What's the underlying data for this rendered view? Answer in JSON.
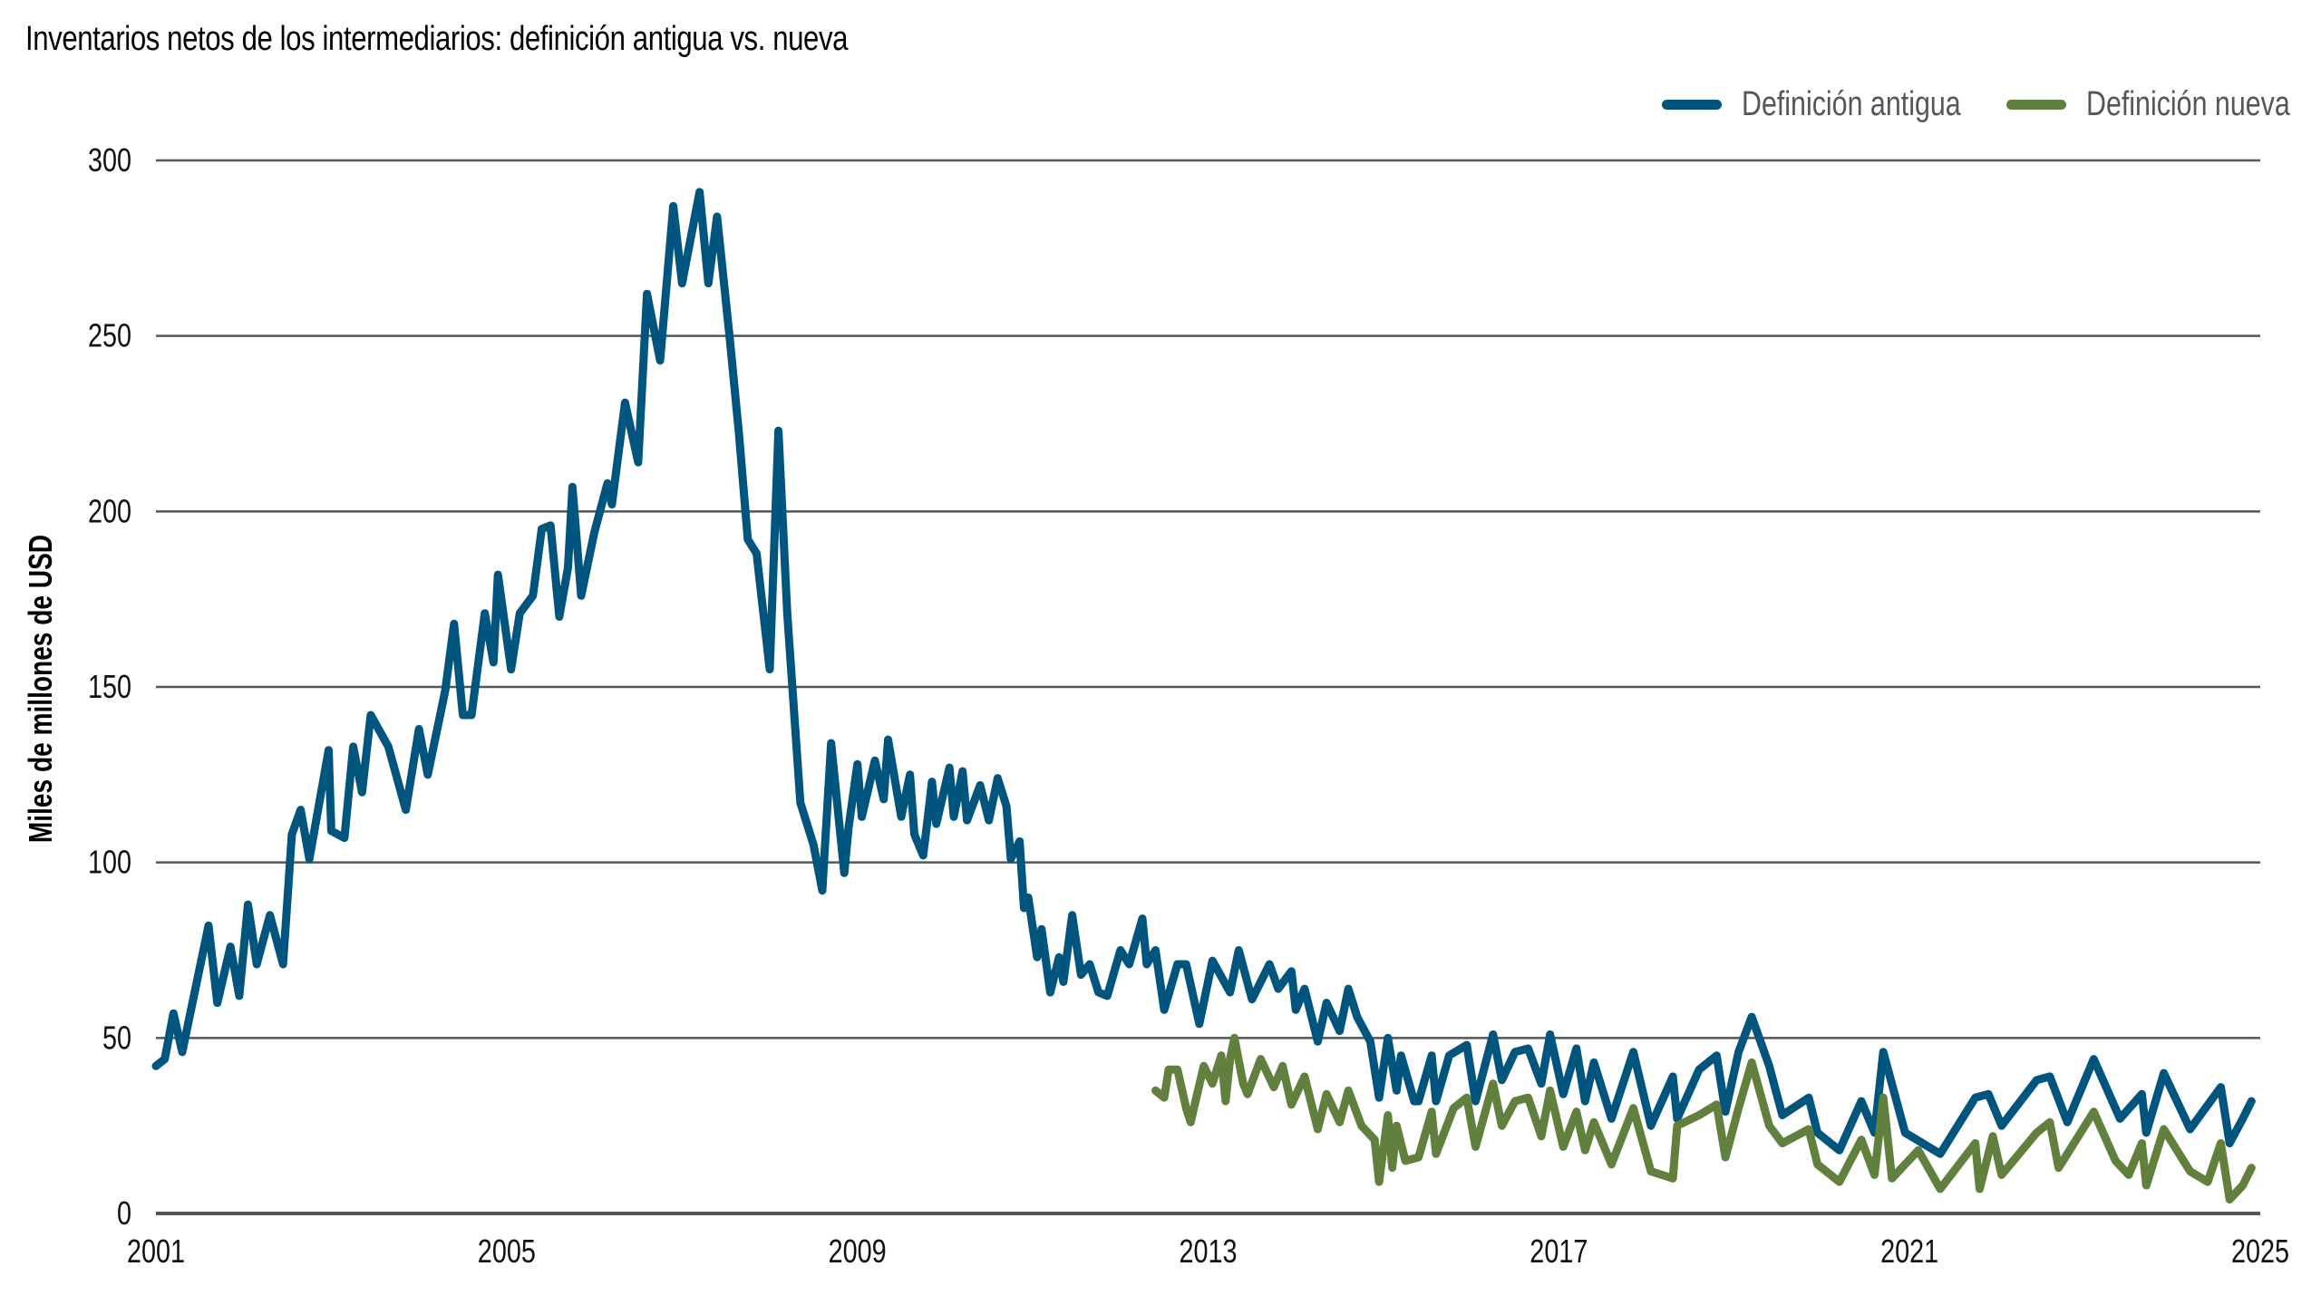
{
  "chart_data": {
    "type": "line",
    "title": "Inventarios netos de los intermediarios: definición antigua vs. nueva",
    "xlabel": "",
    "ylabel": "Miles de millones de USD",
    "xlim": [
      2001,
      2025
    ],
    "ylim": [
      0,
      300
    ],
    "x_ticks": [
      "2001",
      "2005",
      "2009",
      "2013",
      "2017",
      "2021",
      "2025"
    ],
    "y_ticks": [
      "0",
      "50",
      "100",
      "150",
      "200",
      "250",
      "300"
    ],
    "grid": "horizontal",
    "legend_position": "top-right",
    "series": [
      {
        "name": "Definición antigua",
        "color": "#00557f",
        "points": [
          [
            2001.0,
            42
          ],
          [
            2001.1,
            44
          ],
          [
            2001.2,
            57
          ],
          [
            2001.3,
            46
          ],
          [
            2001.45,
            64
          ],
          [
            2001.6,
            82
          ],
          [
            2001.7,
            60
          ],
          [
            2001.85,
            76
          ],
          [
            2001.95,
            62
          ],
          [
            2002.05,
            88
          ],
          [
            2002.15,
            71
          ],
          [
            2002.3,
            85
          ],
          [
            2002.45,
            71
          ],
          [
            2002.55,
            108
          ],
          [
            2002.65,
            115
          ],
          [
            2002.75,
            101
          ],
          [
            2002.97,
            132
          ],
          [
            2003.0,
            109
          ],
          [
            2003.15,
            107
          ],
          [
            2003.25,
            133
          ],
          [
            2003.35,
            120
          ],
          [
            2003.45,
            142
          ],
          [
            2003.65,
            133
          ],
          [
            2003.85,
            115
          ],
          [
            2004.0,
            138
          ],
          [
            2004.1,
            125
          ],
          [
            2004.3,
            149
          ],
          [
            2004.4,
            168
          ],
          [
            2004.5,
            142
          ],
          [
            2004.6,
            142
          ],
          [
            2004.75,
            171
          ],
          [
            2004.85,
            157
          ],
          [
            2004.9,
            182
          ],
          [
            2005.05,
            155
          ],
          [
            2005.15,
            171
          ],
          [
            2005.3,
            176
          ],
          [
            2005.4,
            195
          ],
          [
            2005.5,
            196
          ],
          [
            2005.6,
            170
          ],
          [
            2005.7,
            184
          ],
          [
            2005.75,
            207
          ],
          [
            2005.85,
            176
          ],
          [
            2006.0,
            194
          ],
          [
            2006.15,
            208
          ],
          [
            2006.2,
            202
          ],
          [
            2006.35,
            231
          ],
          [
            2006.5,
            214
          ],
          [
            2006.6,
            262
          ],
          [
            2006.75,
            243
          ],
          [
            2006.9,
            287
          ],
          [
            2007.0,
            265
          ],
          [
            2007.2,
            291
          ],
          [
            2007.3,
            265
          ],
          [
            2007.4,
            284
          ],
          [
            2007.55,
            248
          ],
          [
            2007.65,
            222
          ],
          [
            2007.75,
            192
          ],
          [
            2007.85,
            188
          ],
          [
            2008.0,
            155
          ],
          [
            2008.1,
            223
          ],
          [
            2008.2,
            171
          ],
          [
            2008.35,
            117
          ],
          [
            2008.5,
            105
          ],
          [
            2008.6,
            92
          ],
          [
            2008.7,
            134
          ],
          [
            2008.85,
            97
          ],
          [
            2008.9,
            110
          ],
          [
            2009.0,
            128
          ],
          [
            2009.05,
            113
          ],
          [
            2009.2,
            129
          ],
          [
            2009.3,
            118
          ],
          [
            2009.35,
            135
          ],
          [
            2009.5,
            113
          ],
          [
            2009.6,
            125
          ],
          [
            2009.65,
            108
          ],
          [
            2009.75,
            102
          ],
          [
            2009.8,
            112
          ],
          [
            2009.85,
            123
          ],
          [
            2009.9,
            111
          ],
          [
            2010.05,
            127
          ],
          [
            2010.1,
            113
          ],
          [
            2010.2,
            126
          ],
          [
            2010.25,
            112
          ],
          [
            2010.4,
            122
          ],
          [
            2010.5,
            112
          ],
          [
            2010.6,
            124
          ],
          [
            2010.7,
            116
          ],
          [
            2010.75,
            101
          ],
          [
            2010.85,
            106
          ],
          [
            2010.9,
            87
          ],
          [
            2010.95,
            90
          ],
          [
            2011.05,
            73
          ],
          [
            2011.1,
            81
          ],
          [
            2011.2,
            63
          ],
          [
            2011.3,
            73
          ],
          [
            2011.35,
            66
          ],
          [
            2011.45,
            85
          ],
          [
            2011.55,
            68
          ],
          [
            2011.65,
            71
          ],
          [
            2011.75,
            63
          ],
          [
            2011.85,
            62
          ],
          [
            2012.0,
            75
          ],
          [
            2012.1,
            71
          ],
          [
            2012.25,
            84
          ],
          [
            2012.3,
            71
          ],
          [
            2012.4,
            75
          ],
          [
            2012.5,
            58
          ],
          [
            2012.65,
            71
          ],
          [
            2012.75,
            71
          ],
          [
            2012.9,
            54
          ],
          [
            2013.05,
            72
          ],
          [
            2013.25,
            63
          ],
          [
            2013.35,
            75
          ],
          [
            2013.5,
            61
          ],
          [
            2013.7,
            71
          ],
          [
            2013.8,
            64
          ],
          [
            2013.95,
            69
          ],
          [
            2014.0,
            58
          ],
          [
            2014.1,
            64
          ],
          [
            2014.25,
            49
          ],
          [
            2014.35,
            60
          ],
          [
            2014.5,
            52
          ],
          [
            2014.6,
            64
          ],
          [
            2014.7,
            56
          ],
          [
            2014.85,
            49
          ],
          [
            2014.95,
            33
          ],
          [
            2015.05,
            50
          ],
          [
            2015.15,
            35
          ],
          [
            2015.2,
            45
          ],
          [
            2015.35,
            32
          ],
          [
            2015.4,
            32
          ],
          [
            2015.55,
            45
          ],
          [
            2015.6,
            32
          ],
          [
            2015.75,
            45
          ],
          [
            2015.95,
            48
          ],
          [
            2016.05,
            32
          ],
          [
            2016.25,
            51
          ],
          [
            2016.35,
            38
          ],
          [
            2016.5,
            46
          ],
          [
            2016.65,
            47
          ],
          [
            2016.8,
            37
          ],
          [
            2016.9,
            51
          ],
          [
            2017.05,
            34
          ],
          [
            2017.2,
            47
          ],
          [
            2017.3,
            32
          ],
          [
            2017.4,
            43
          ],
          [
            2017.6,
            27
          ],
          [
            2017.85,
            46
          ],
          [
            2018.05,
            25
          ],
          [
            2018.3,
            39
          ],
          [
            2018.35,
            27
          ],
          [
            2018.6,
            41
          ],
          [
            2018.8,
            45
          ],
          [
            2018.9,
            29
          ],
          [
            2019.05,
            46
          ],
          [
            2019.2,
            56
          ],
          [
            2019.4,
            42
          ],
          [
            2019.55,
            28
          ],
          [
            2019.85,
            33
          ],
          [
            2019.95,
            23
          ],
          [
            2020.2,
            18
          ],
          [
            2020.45,
            32
          ],
          [
            2020.6,
            23
          ],
          [
            2020.7,
            46
          ],
          [
            2020.95,
            23
          ],
          [
            2021.35,
            17
          ],
          [
            2021.75,
            33
          ],
          [
            2021.9,
            34
          ],
          [
            2022.05,
            25
          ],
          [
            2022.45,
            38
          ],
          [
            2022.6,
            39
          ],
          [
            2022.8,
            26
          ],
          [
            2023.1,
            44
          ],
          [
            2023.4,
            27
          ],
          [
            2023.65,
            34
          ],
          [
            2023.7,
            23
          ],
          [
            2023.9,
            40
          ],
          [
            2024.2,
            24
          ],
          [
            2024.55,
            36
          ],
          [
            2024.65,
            20
          ],
          [
            2024.8,
            27
          ],
          [
            2024.9,
            32
          ]
        ]
      },
      {
        "name": "Definición nueva",
        "color": "#62803d",
        "points": [
          [
            2012.4,
            35
          ],
          [
            2012.5,
            33
          ],
          [
            2012.55,
            41
          ],
          [
            2012.65,
            41
          ],
          [
            2012.75,
            30
          ],
          [
            2012.8,
            26
          ],
          [
            2012.95,
            42
          ],
          [
            2013.05,
            37
          ],
          [
            2013.15,
            45
          ],
          [
            2013.2,
            32
          ],
          [
            2013.25,
            44
          ],
          [
            2013.3,
            50
          ],
          [
            2013.4,
            37
          ],
          [
            2013.45,
            34
          ],
          [
            2013.6,
            44
          ],
          [
            2013.75,
            36
          ],
          [
            2013.85,
            42
          ],
          [
            2013.95,
            31
          ],
          [
            2014.1,
            39
          ],
          [
            2014.25,
            24
          ],
          [
            2014.35,
            34
          ],
          [
            2014.5,
            26
          ],
          [
            2014.6,
            35
          ],
          [
            2014.75,
            25
          ],
          [
            2014.9,
            21
          ],
          [
            2014.95,
            9
          ],
          [
            2015.05,
            28
          ],
          [
            2015.1,
            13
          ],
          [
            2015.15,
            25
          ],
          [
            2015.25,
            15
          ],
          [
            2015.4,
            16
          ],
          [
            2015.55,
            29
          ],
          [
            2015.6,
            17
          ],
          [
            2015.8,
            30
          ],
          [
            2015.95,
            33
          ],
          [
            2016.05,
            19
          ],
          [
            2016.25,
            37
          ],
          [
            2016.35,
            25
          ],
          [
            2016.5,
            32
          ],
          [
            2016.65,
            33
          ],
          [
            2016.8,
            22
          ],
          [
            2016.9,
            35
          ],
          [
            2017.05,
            19
          ],
          [
            2017.2,
            29
          ],
          [
            2017.3,
            18
          ],
          [
            2017.4,
            26
          ],
          [
            2017.6,
            14
          ],
          [
            2017.85,
            30
          ],
          [
            2018.05,
            12
          ],
          [
            2018.3,
            10
          ],
          [
            2018.35,
            25
          ],
          [
            2018.6,
            28
          ],
          [
            2018.8,
            31
          ],
          [
            2018.9,
            16
          ],
          [
            2019.05,
            30
          ],
          [
            2019.2,
            43
          ],
          [
            2019.4,
            25
          ],
          [
            2019.55,
            20
          ],
          [
            2019.85,
            24
          ],
          [
            2019.95,
            14
          ],
          [
            2020.2,
            9
          ],
          [
            2020.45,
            21
          ],
          [
            2020.6,
            11
          ],
          [
            2020.7,
            33
          ],
          [
            2020.8,
            10
          ],
          [
            2021.1,
            18
          ],
          [
            2021.35,
            7
          ],
          [
            2021.75,
            20
          ],
          [
            2021.8,
            7
          ],
          [
            2021.95,
            22
          ],
          [
            2022.05,
            11
          ],
          [
            2022.45,
            23
          ],
          [
            2022.6,
            26
          ],
          [
            2022.7,
            13
          ],
          [
            2023.1,
            29
          ],
          [
            2023.35,
            15
          ],
          [
            2023.5,
            11
          ],
          [
            2023.65,
            20
          ],
          [
            2023.7,
            8
          ],
          [
            2023.9,
            24
          ],
          [
            2024.2,
            12
          ],
          [
            2024.4,
            9
          ],
          [
            2024.55,
            20
          ],
          [
            2024.65,
            4
          ],
          [
            2024.8,
            8
          ],
          [
            2024.9,
            13
          ]
        ]
      }
    ]
  },
  "header": {
    "title": "Inventarios netos de los intermediarios: definición antigua vs. nueva"
  },
  "legend": [
    {
      "label": "Definición antigua",
      "color": "#00557f"
    },
    {
      "label": "Definición nueva",
      "color": "#62803d"
    }
  ],
  "axes": {
    "ylabel": "Miles de millones de USD",
    "gridline_color": "#53565a"
  }
}
